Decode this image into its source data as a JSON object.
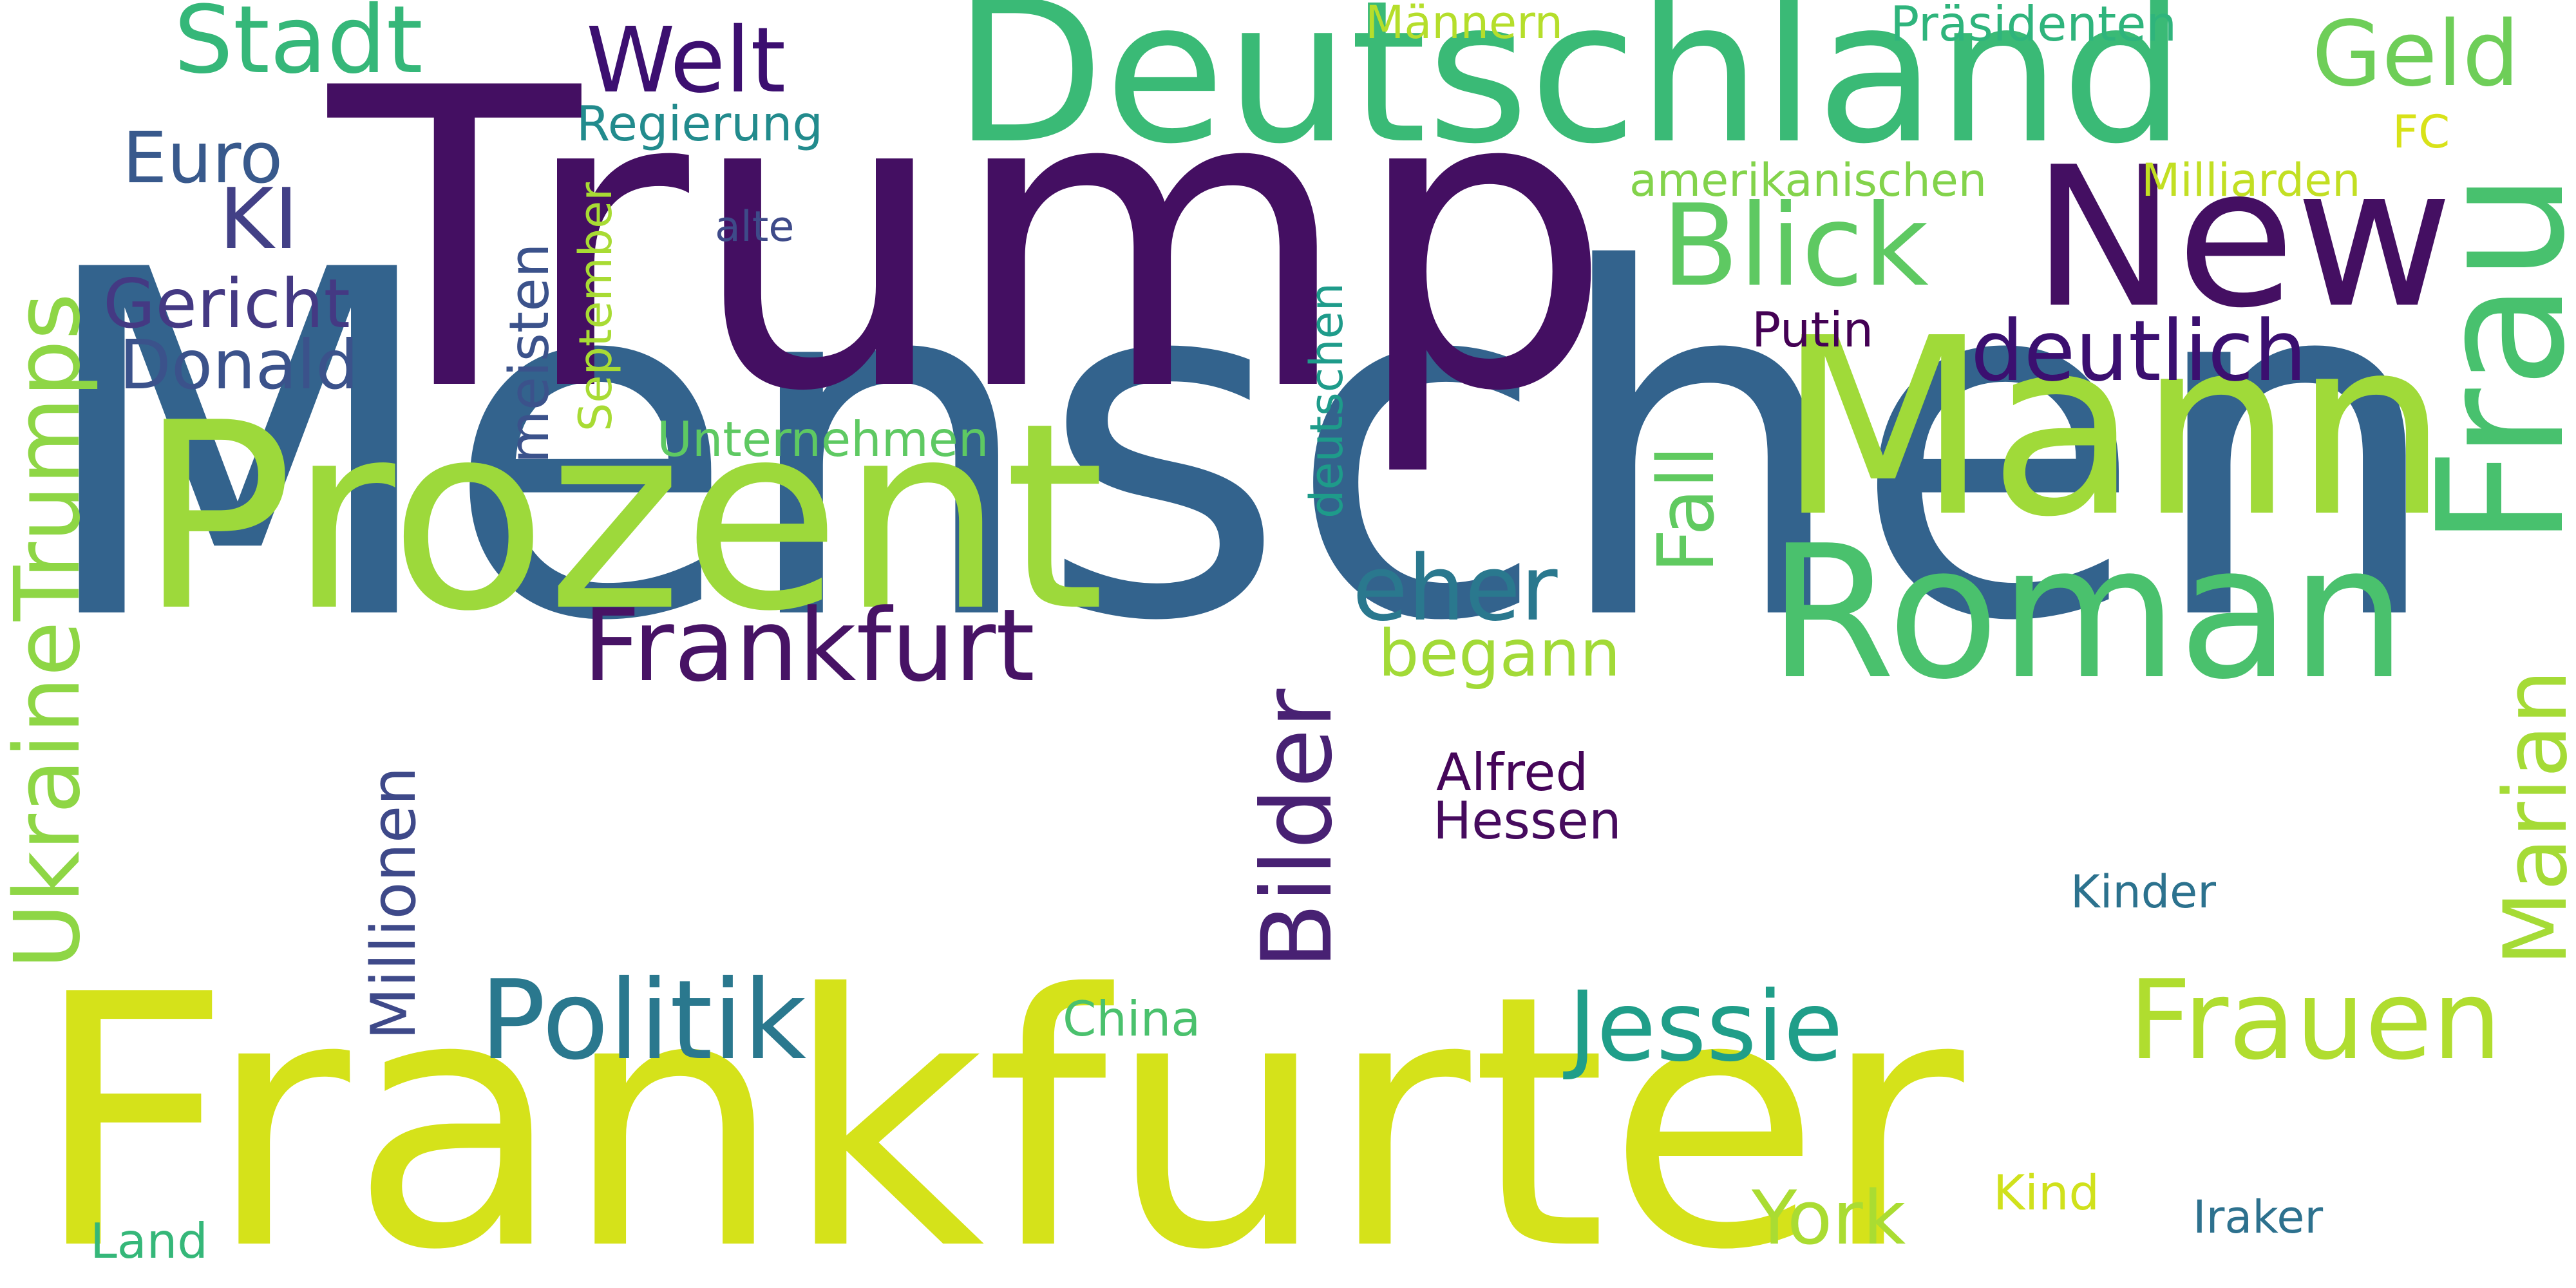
{
  "words": [
    {
      "text": "Menschen",
      "color": "#33638d"
    },
    {
      "text": "Trump",
      "color": "#440f62"
    },
    {
      "text": "Frankfurter",
      "color": "#d5e21a"
    },
    {
      "text": "Prozent",
      "color": "#9dd93b"
    },
    {
      "text": "Deutschland",
      "color": "#3aba76"
    },
    {
      "text": "Mann",
      "color": "#a0da39"
    },
    {
      "text": "Roman",
      "color": "#4ac16d"
    },
    {
      "text": "Frau",
      "color": "#48c16e"
    },
    {
      "text": "New",
      "color": "#440f62"
    },
    {
      "text": "Frankfurt",
      "color": "#471365"
    },
    {
      "text": "Frauen",
      "color": "#b0dd2f"
    },
    {
      "text": "Jessie",
      "color": "#1f9e89"
    },
    {
      "text": "Politik",
      "color": "#2a788e"
    },
    {
      "text": "Blick",
      "color": "#5ec962"
    },
    {
      "text": "UkraineTrumps",
      "color": "#8ed645"
    },
    {
      "text": "Marian",
      "color": "#a5db36"
    },
    {
      "text": "Bilder",
      "color": "#482173"
    },
    {
      "text": "eher",
      "color": "#2a788e"
    },
    {
      "text": "deutlich",
      "color": "#3b0f70"
    },
    {
      "text": "Welt",
      "color": "#3c0f70"
    },
    {
      "text": "Stadt",
      "color": "#35b779"
    },
    {
      "text": "Geld",
      "color": "#6ece58"
    },
    {
      "text": "Fall",
      "color": "#60ca60"
    },
    {
      "text": "KI",
      "color": "#424086"
    },
    {
      "text": "Gericht",
      "color": "#443983"
    },
    {
      "text": "Donald",
      "color": "#3b528b"
    },
    {
      "text": "Euro",
      "color": "#38598c"
    },
    {
      "text": "Millionen",
      "color": "#3e4989"
    },
    {
      "text": "meisten",
      "color": "#3b528b"
    },
    {
      "text": "York",
      "color": "#aadc32"
    },
    {
      "text": "begann",
      "color": "#a2da37"
    },
    {
      "text": "Alfred",
      "color": "#450559"
    },
    {
      "text": "Hessen",
      "color": "#460b5e"
    },
    {
      "text": "Regierung",
      "color": "#228b8d"
    },
    {
      "text": "Präsidenten",
      "color": "#2fb47c"
    },
    {
      "text": "Männern",
      "color": "#b5de2b"
    },
    {
      "text": "amerikanischen",
      "color": "#83d34b"
    },
    {
      "text": "Milliarden",
      "color": "#c2df23"
    },
    {
      "text": "Unternehmen",
      "color": "#5ec962"
    },
    {
      "text": "September",
      "color": "#a8db34"
    },
    {
      "text": "deutschen",
      "color": "#1e9b8a"
    },
    {
      "text": "Putin",
      "color": "#440154"
    },
    {
      "text": "alte",
      "color": "#3e4a89"
    },
    {
      "text": "FC",
      "color": "#d8e219"
    },
    {
      "text": "China",
      "color": "#4ac16d"
    },
    {
      "text": "Kinder",
      "color": "#2c728e"
    },
    {
      "text": "Kind",
      "color": "#d0e11c"
    },
    {
      "text": "Iraker",
      "color": "#2d718e"
    },
    {
      "text": "Land",
      "color": "#35b779"
    }
  ]
}
